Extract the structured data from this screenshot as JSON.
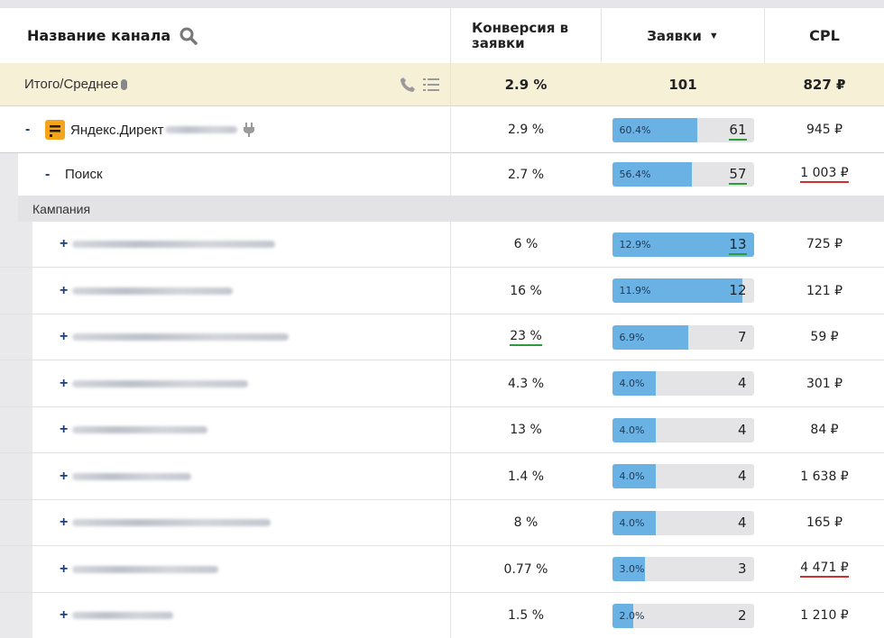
{
  "header": {
    "channel_name": "Название канала",
    "conversion": "Конверсия в заявки",
    "leads": "Заявки",
    "sort_indicator": "▼",
    "cpl": "CPL"
  },
  "totals": {
    "label": "Итого/Среднее",
    "conversion": "2.9 %",
    "leads": "101",
    "cpl": "827 ₽"
  },
  "channel": {
    "toggle": "-",
    "name": "Яндекс.Директ",
    "conversion": "2.9 %",
    "leads_pct": "60.4%",
    "leads_fraction": 0.604,
    "leads": "61",
    "cpl": "945 ₽"
  },
  "subchannel": {
    "toggle": "-",
    "name": "Поиск",
    "conversion": "2.7 %",
    "leads_pct": "56.4%",
    "leads_fraction": 0.564,
    "leads": "57",
    "cpl": "1 003 ₽"
  },
  "campaign_label": "Кампания",
  "campaigns": [
    {
      "toggle": "+",
      "conversion": "6 %",
      "leads_pct": "12.9%",
      "fraction": 1.0,
      "leads": "13",
      "cpl": "725 ₽"
    },
    {
      "toggle": "+",
      "conversion": "16 %",
      "leads_pct": "11.9%",
      "fraction": 0.92,
      "leads": "12",
      "cpl": "121 ₽"
    },
    {
      "toggle": "+",
      "conversion": "23 %",
      "leads_pct": "6.9%",
      "fraction": 0.54,
      "leads": "7",
      "cpl": "59 ₽"
    },
    {
      "toggle": "+",
      "conversion": "4.3 %",
      "leads_pct": "4.0%",
      "fraction": 0.31,
      "leads": "4",
      "cpl": "301 ₽"
    },
    {
      "toggle": "+",
      "conversion": "13 %",
      "leads_pct": "4.0%",
      "fraction": 0.31,
      "leads": "4",
      "cpl": "84 ₽"
    },
    {
      "toggle": "+",
      "conversion": "1.4 %",
      "leads_pct": "4.0%",
      "fraction": 0.31,
      "leads": "4",
      "cpl": "1 638 ₽"
    },
    {
      "toggle": "+",
      "conversion": "8 %",
      "leads_pct": "4.0%",
      "fraction": 0.31,
      "leads": "4",
      "cpl": "165 ₽"
    },
    {
      "toggle": "+",
      "conversion": "0.77 %",
      "leads_pct": "3.0%",
      "fraction": 0.23,
      "leads": "3",
      "cpl": "4 471 ₽"
    },
    {
      "toggle": "+",
      "conversion": "1.5 %",
      "leads_pct": "2.0%",
      "fraction": 0.15,
      "leads": "2",
      "cpl": "1 210 ₽"
    }
  ],
  "colors": {
    "bar_fill": "#6ab2e4",
    "totals_bg": "#f6f0d7",
    "good_underline": "#2e9b3b",
    "bad_underline": "#d23030",
    "toggle": "#1c3f7a",
    "yandex_icon": "#f4a51c"
  },
  "icons": [
    "search-icon",
    "phone-icon",
    "list-icon",
    "yandex-direct-icon",
    "plug-icon"
  ]
}
